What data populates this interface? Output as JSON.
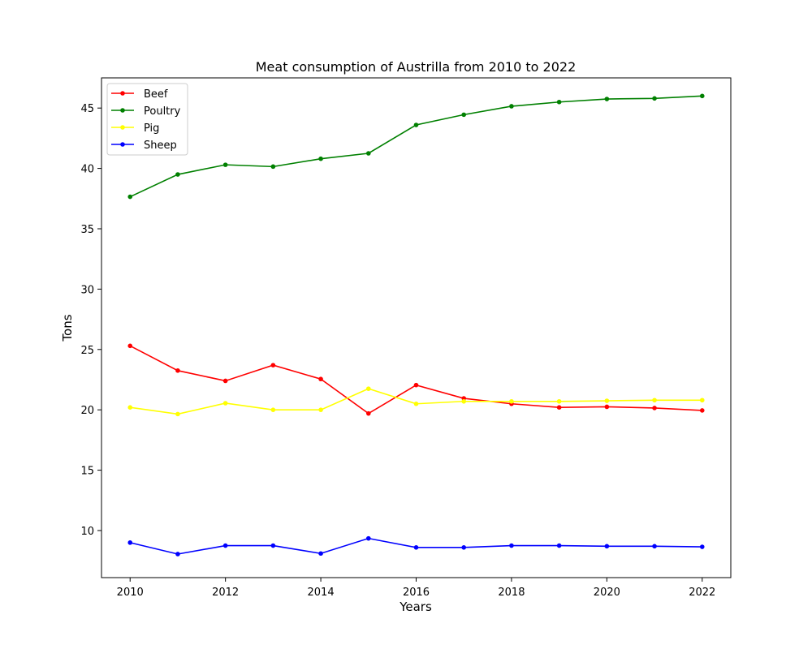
{
  "chart_data": {
    "type": "line",
    "title": "Meat consumption of Austrilla from 2010 to 2022",
    "xlabel": "Years",
    "ylabel": "Tons",
    "x": [
      2010,
      2011,
      2012,
      2013,
      2014,
      2015,
      2016,
      2017,
      2018,
      2019,
      2020,
      2021,
      2022
    ],
    "xlim": [
      2009.4,
      2022.6
    ],
    "ylim": [
      6.1,
      47.5
    ],
    "xticks": [
      "2010",
      "2012",
      "2014",
      "2016",
      "2018",
      "2020",
      "2022"
    ],
    "yticks": [
      "10",
      "15",
      "20",
      "25",
      "30",
      "35",
      "40",
      "45"
    ],
    "grid": false,
    "legend_position": "upper-left",
    "series": [
      {
        "name": "Beef",
        "color": "#ff0000",
        "marker": "circle",
        "values": [
          25.3,
          23.25,
          22.4,
          23.7,
          22.55,
          19.7,
          22.05,
          20.95,
          20.5,
          20.2,
          20.25,
          20.15,
          19.95
        ]
      },
      {
        "name": "Poultry",
        "color": "#008000",
        "marker": "circle",
        "values": [
          37.65,
          39.5,
          40.3,
          40.15,
          40.8,
          41.25,
          43.6,
          44.45,
          45.15,
          45.5,
          45.75,
          45.8,
          46.0
        ]
      },
      {
        "name": "Pig",
        "color": "#ffff00",
        "marker": "circle",
        "values": [
          20.2,
          19.65,
          20.55,
          20.0,
          20.0,
          21.75,
          20.5,
          20.7,
          20.7,
          20.7,
          20.75,
          20.8,
          20.8
        ]
      },
      {
        "name": "Sheep",
        "color": "#0000ff",
        "marker": "circle",
        "values": [
          9.0,
          8.05,
          8.75,
          8.75,
          8.1,
          9.35,
          8.6,
          8.6,
          8.75,
          8.75,
          8.7,
          8.7,
          8.65
        ]
      }
    ]
  }
}
